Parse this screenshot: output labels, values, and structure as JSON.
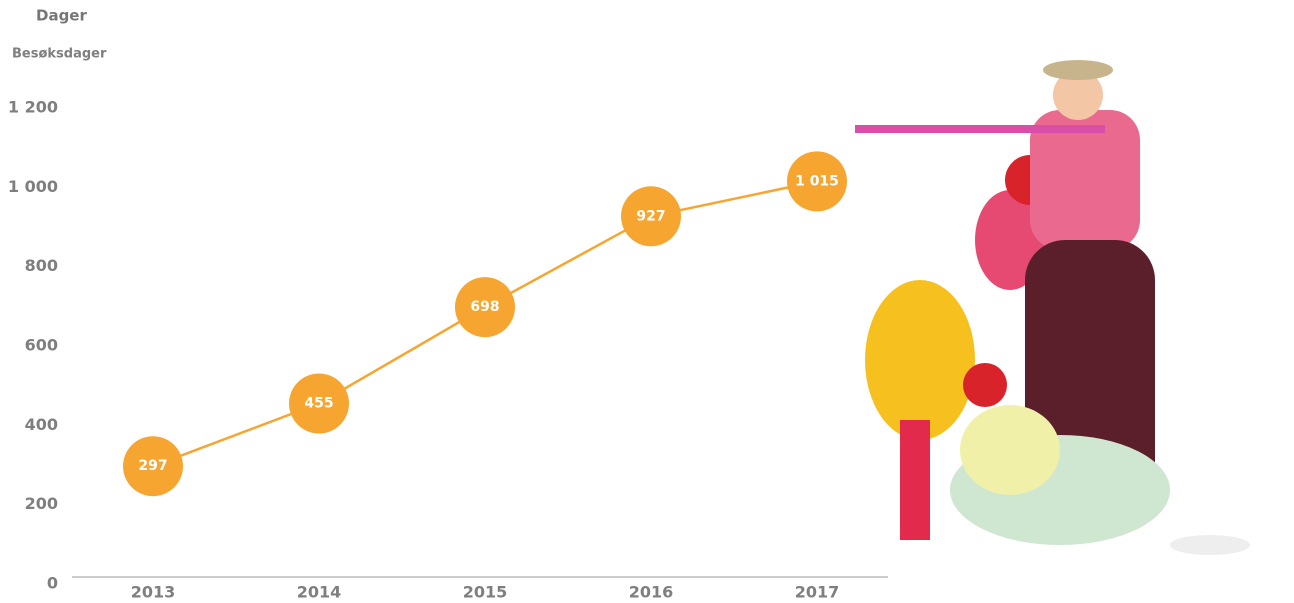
{
  "chart_data": {
    "type": "line",
    "unit_label": "Dager",
    "y_label": "Besøksdager",
    "categories": [
      "2013",
      "2014",
      "2015",
      "2016",
      "2017"
    ],
    "values": [
      297,
      455,
      698,
      927,
      1015
    ],
    "value_labels": [
      "297",
      "455",
      "698",
      "927",
      "1 015"
    ],
    "color": "#f7a531",
    "ylim": [
      0,
      1200
    ],
    "yticks": [
      0,
      200,
      400,
      600,
      800,
      {
        "value": 1000,
        "label": "1 000"
      },
      {
        "value": 1200,
        "label": "1 200"
      }
    ],
    "grid": false
  }
}
